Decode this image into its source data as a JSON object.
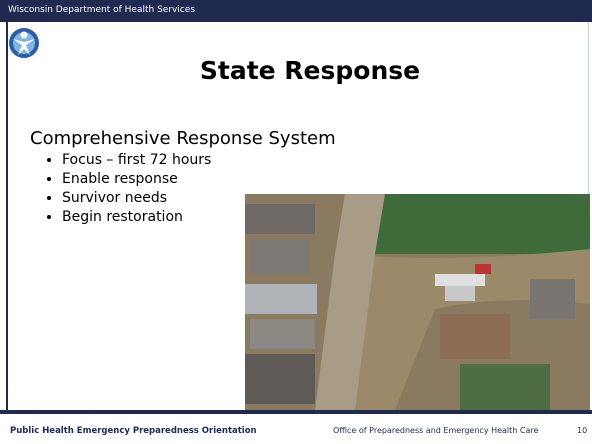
{
  "header": {
    "organization": "Wisconsin Department of Health Services"
  },
  "slide": {
    "title": "State Response",
    "heading": "Comprehensive Response System",
    "bullets": [
      "Focus – first 72 hours",
      "Enable response",
      "Survivor needs",
      "Begin restoration"
    ]
  },
  "footer": {
    "left": "Public Health Emergency Preparedness Orientation",
    "center": "Office of  Preparedness and Emergency Health Care",
    "page_number": "10"
  }
}
